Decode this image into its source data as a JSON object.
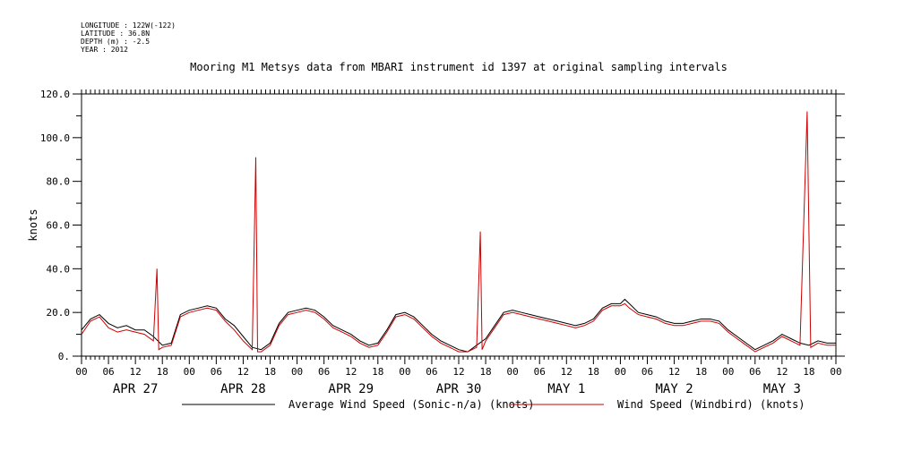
{
  "header": {
    "metadata_lines": [
      "LONGITUDE : 122W(-122)",
      "LATITUDE : 36.8N",
      "DEPTH (m) : -2.5",
      "YEAR : 2012"
    ],
    "title": "Mooring M1 Metsys data from MBARI instrument id 1397 at original sampling intervals"
  },
  "chart_data": {
    "type": "line",
    "title": "Mooring M1 Metsys data from MBARI instrument id 1397 at original sampling intervals",
    "xlabel": "",
    "ylabel": "knots",
    "xlim_hours": [
      0,
      168
    ],
    "ylim": [
      0,
      120
    ],
    "y_ticks": [
      "0.",
      "20.0",
      "40.0",
      "60.0",
      "80.0",
      "100.0",
      "120.0"
    ],
    "x_hour_labels": [
      "00",
      "06",
      "12",
      "18",
      "00",
      "06",
      "12",
      "18",
      "00",
      "06",
      "12",
      "18",
      "00",
      "06",
      "12",
      "18",
      "00",
      "06",
      "12",
      "18",
      "00",
      "06",
      "12",
      "18",
      "00",
      "06",
      "12",
      "18",
      "00"
    ],
    "day_labels": [
      "APR 27",
      "APR 28",
      "APR 29",
      "APR 30",
      "MAY  1",
      "MAY  2",
      "MAY  3"
    ],
    "series": [
      {
        "name": "Average Wind Speed (Sonic-n/a) (knots)",
        "color": "#000000",
        "points": [
          [
            0,
            12
          ],
          [
            2,
            17
          ],
          [
            4,
            19
          ],
          [
            6,
            15
          ],
          [
            8,
            13
          ],
          [
            10,
            14
          ],
          [
            12,
            12
          ],
          [
            14,
            12
          ],
          [
            16,
            9
          ],
          [
            18,
            5
          ],
          [
            20,
            6
          ],
          [
            22,
            19
          ],
          [
            24,
            21
          ],
          [
            26,
            22
          ],
          [
            28,
            23
          ],
          [
            30,
            22
          ],
          [
            32,
            17
          ],
          [
            34,
            14
          ],
          [
            36,
            9
          ],
          [
            38,
            4
          ],
          [
            40,
            3
          ],
          [
            42,
            6
          ],
          [
            44,
            15
          ],
          [
            46,
            20
          ],
          [
            48,
            21
          ],
          [
            50,
            22
          ],
          [
            52,
            21
          ],
          [
            54,
            18
          ],
          [
            56,
            14
          ],
          [
            58,
            12
          ],
          [
            60,
            10
          ],
          [
            62,
            7
          ],
          [
            64,
            5
          ],
          [
            66,
            6
          ],
          [
            68,
            12
          ],
          [
            70,
            19
          ],
          [
            72,
            20
          ],
          [
            74,
            18
          ],
          [
            76,
            14
          ],
          [
            78,
            10
          ],
          [
            80,
            7
          ],
          [
            82,
            5
          ],
          [
            84,
            3
          ],
          [
            86,
            2
          ],
          [
            88,
            5
          ],
          [
            90,
            8
          ],
          [
            92,
            14
          ],
          [
            94,
            20
          ],
          [
            96,
            21
          ],
          [
            98,
            20
          ],
          [
            100,
            19
          ],
          [
            102,
            18
          ],
          [
            104,
            17
          ],
          [
            106,
            16
          ],
          [
            108,
            15
          ],
          [
            110,
            14
          ],
          [
            112,
            15
          ],
          [
            114,
            17
          ],
          [
            116,
            22
          ],
          [
            118,
            24
          ],
          [
            120,
            24
          ],
          [
            121,
            26
          ],
          [
            122,
            24
          ],
          [
            124,
            20
          ],
          [
            126,
            19
          ],
          [
            128,
            18
          ],
          [
            130,
            16
          ],
          [
            132,
            15
          ],
          [
            134,
            15
          ],
          [
            136,
            16
          ],
          [
            138,
            17
          ],
          [
            140,
            17
          ],
          [
            142,
            16
          ],
          [
            144,
            12
          ],
          [
            146,
            9
          ],
          [
            148,
            6
          ],
          [
            150,
            3
          ],
          [
            152,
            5
          ],
          [
            154,
            7
          ],
          [
            156,
            10
          ],
          [
            158,
            8
          ],
          [
            160,
            6
          ],
          [
            162,
            5
          ],
          [
            164,
            7
          ],
          [
            166,
            6
          ],
          [
            168,
            6
          ]
        ]
      },
      {
        "name": "Wind Speed (Windbird) (knots)",
        "color": "#cc0000",
        "points": [
          [
            0,
            10
          ],
          [
            2,
            16
          ],
          [
            4,
            18
          ],
          [
            6,
            13
          ],
          [
            8,
            11
          ],
          [
            10,
            12
          ],
          [
            12,
            11
          ],
          [
            14,
            10
          ],
          [
            16,
            7
          ],
          [
            16.8,
            40
          ],
          [
            17.2,
            3
          ],
          [
            18,
            4
          ],
          [
            20,
            5
          ],
          [
            22,
            18
          ],
          [
            24,
            20
          ],
          [
            26,
            21
          ],
          [
            28,
            22
          ],
          [
            30,
            21
          ],
          [
            32,
            16
          ],
          [
            34,
            12
          ],
          [
            36,
            7
          ],
          [
            38,
            3
          ],
          [
            38.8,
            91
          ],
          [
            39.2,
            2
          ],
          [
            40,
            2
          ],
          [
            42,
            5
          ],
          [
            44,
            14
          ],
          [
            46,
            19
          ],
          [
            48,
            20
          ],
          [
            50,
            21
          ],
          [
            52,
            20
          ],
          [
            54,
            17
          ],
          [
            56,
            13
          ],
          [
            58,
            11
          ],
          [
            60,
            9
          ],
          [
            62,
            6
          ],
          [
            64,
            4
          ],
          [
            66,
            5
          ],
          [
            68,
            11
          ],
          [
            70,
            18
          ],
          [
            72,
            19
          ],
          [
            74,
            17
          ],
          [
            76,
            13
          ],
          [
            78,
            9
          ],
          [
            80,
            6
          ],
          [
            82,
            4
          ],
          [
            84,
            2
          ],
          [
            86,
            2
          ],
          [
            88,
            4
          ],
          [
            88.8,
            57
          ],
          [
            89.2,
            3
          ],
          [
            90,
            7
          ],
          [
            92,
            13
          ],
          [
            94,
            19
          ],
          [
            96,
            20
          ],
          [
            98,
            19
          ],
          [
            100,
            18
          ],
          [
            102,
            17
          ],
          [
            104,
            16
          ],
          [
            106,
            15
          ],
          [
            108,
            14
          ],
          [
            110,
            13
          ],
          [
            112,
            14
          ],
          [
            114,
            16
          ],
          [
            116,
            21
          ],
          [
            118,
            23
          ],
          [
            120,
            23
          ],
          [
            121,
            24
          ],
          [
            122,
            22
          ],
          [
            124,
            19
          ],
          [
            126,
            18
          ],
          [
            128,
            17
          ],
          [
            130,
            15
          ],
          [
            132,
            14
          ],
          [
            134,
            14
          ],
          [
            136,
            15
          ],
          [
            138,
            16
          ],
          [
            140,
            16
          ],
          [
            142,
            15
          ],
          [
            144,
            11
          ],
          [
            146,
            8
          ],
          [
            148,
            5
          ],
          [
            150,
            2
          ],
          [
            152,
            4
          ],
          [
            154,
            6
          ],
          [
            156,
            9
          ],
          [
            158,
            7
          ],
          [
            160,
            5
          ],
          [
            161.6,
            112
          ],
          [
            162,
            57
          ],
          [
            162.4,
            4
          ],
          [
            164,
            6
          ],
          [
            166,
            5
          ],
          [
            168,
            5
          ]
        ]
      }
    ],
    "legend_placement": "bottom",
    "grid": false
  }
}
